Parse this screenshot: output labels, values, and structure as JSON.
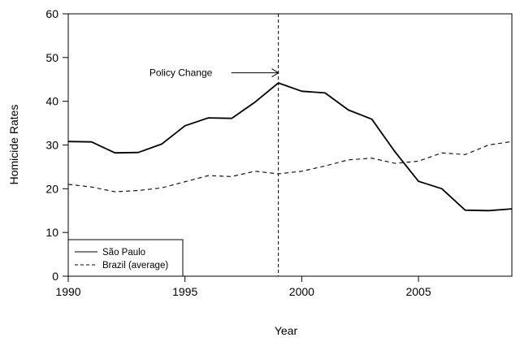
{
  "chart_data": {
    "type": "line",
    "title": "",
    "xlabel": "Year",
    "ylabel": "Homicide Rates",
    "xlim": [
      1990,
      2009
    ],
    "ylim": [
      0,
      60
    ],
    "xticks": [
      1990,
      1995,
      2000,
      2005
    ],
    "yticks": [
      0,
      10,
      20,
      30,
      40,
      50,
      60
    ],
    "x": [
      1990,
      1991,
      1992,
      1993,
      1994,
      1995,
      1996,
      1997,
      1998,
      1999,
      2000,
      2001,
      2002,
      2003,
      2004,
      2005,
      2006,
      2007,
      2008,
      2009
    ],
    "series": [
      {
        "name": "São Paulo",
        "line_style": "solid",
        "values": [
          30.8,
          30.7,
          28.2,
          28.3,
          30.2,
          34.4,
          36.2,
          36.1,
          39.8,
          44.2,
          42.3,
          41.9,
          38.0,
          35.9,
          28.4,
          21.7,
          20.0,
          15.1,
          15.0,
          15.4
        ]
      },
      {
        "name": "Brazil (average)",
        "line_style": "dashed",
        "values": [
          21.0,
          20.4,
          19.3,
          19.6,
          20.2,
          21.6,
          23.0,
          22.8,
          24.0,
          23.4,
          24.0,
          25.2,
          26.6,
          27.0,
          25.8,
          26.3,
          28.2,
          27.8,
          30.0,
          30.8
        ]
      }
    ],
    "annotations": [
      {
        "text": "Policy Change",
        "x": 1999,
        "style": "dashed vertical line with arrow"
      }
    ],
    "legend": {
      "position": "bottom-left",
      "entries": [
        "São Paulo",
        "Brazil (average)"
      ]
    },
    "grid": false,
    "colors": {
      "lines": "#000000",
      "background": "#ffffff"
    }
  }
}
